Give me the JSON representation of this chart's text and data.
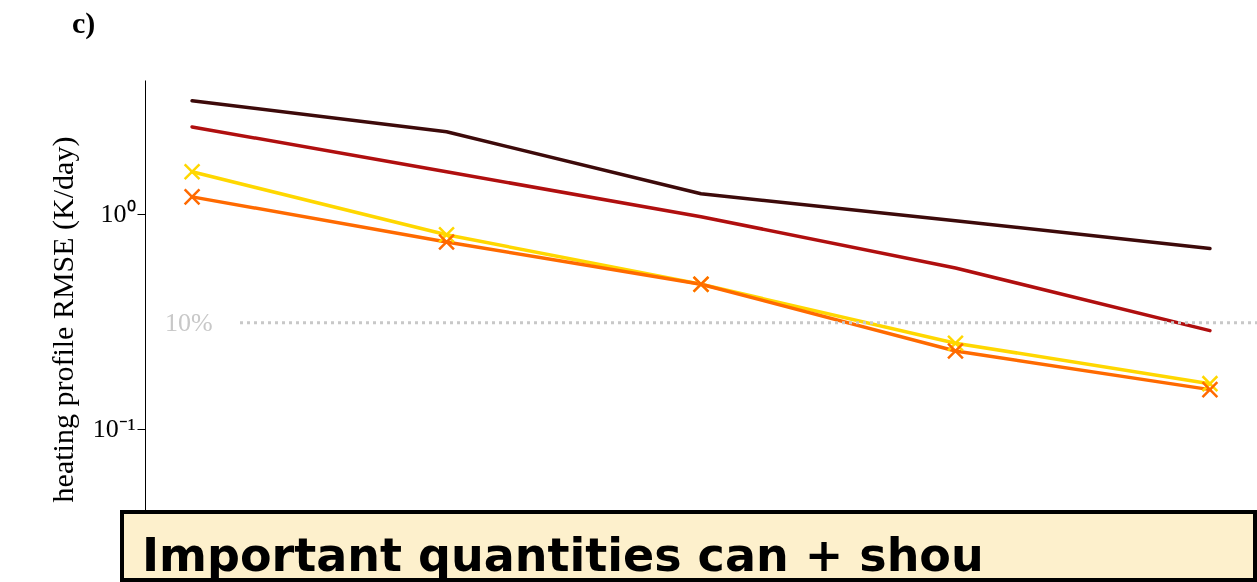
{
  "chart_data": {
    "type": "line",
    "title": "c)",
    "ylabel": "heating profile RMSE (K/day)",
    "categories": [
      null,
      null,
      null,
      null,
      null
    ],
    "series": [
      {
        "color": "#3d0a0a",
        "values": [
          3.36,
          2.41,
          1.24,
          0.93,
          0.69
        ],
        "marker": "none"
      },
      {
        "color": "#b00f0f",
        "values": [
          2.54,
          1.57,
          0.97,
          0.56,
          0.286
        ],
        "marker": "none"
      },
      {
        "color": "#ffd700",
        "values": [
          1.57,
          0.8,
          0.47,
          0.25,
          0.162
        ],
        "marker": "cross"
      },
      {
        "color": "#ff6a00",
        "values": [
          1.2,
          0.74,
          0.47,
          0.23,
          0.152
        ],
        "marker": "cross"
      }
    ],
    "log": true,
    "ylim": [
      0.025,
      4.2
    ],
    "yticks": [
      {
        "value": 0.1,
        "label": "10⁻¹"
      },
      {
        "value": 1,
        "label": "10⁰"
      }
    ],
    "ref_lines": [
      {
        "axis": "y",
        "value": 0.311,
        "color": "#c8c8c8",
        "line_style": "dotted"
      }
    ],
    "tick_labels": "y",
    "grid": false,
    "legend": false,
    "annotations": [
      "10%",
      "Important quantities can + shou"
    ]
  }
}
